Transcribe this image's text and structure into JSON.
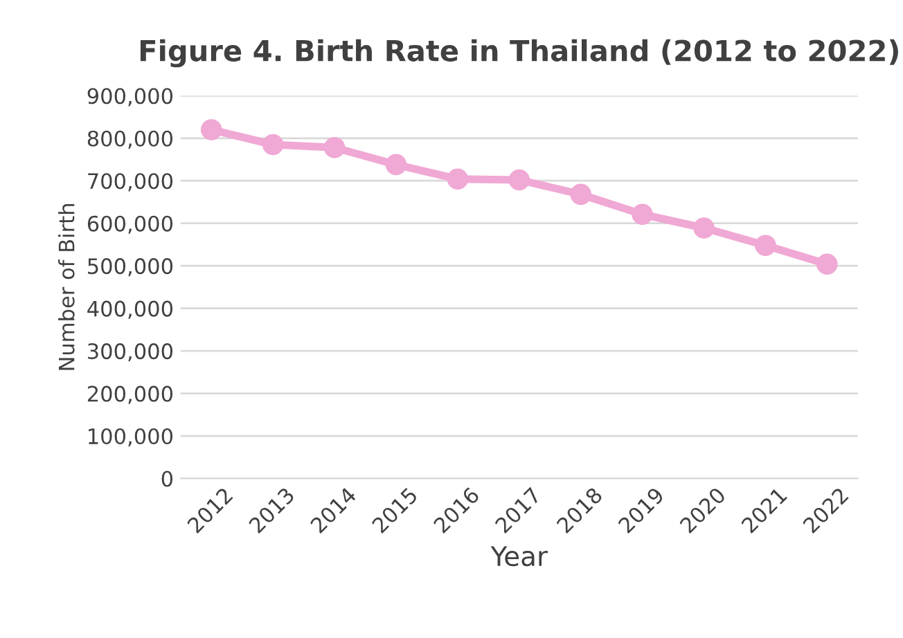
{
  "chart_data": {
    "type": "line",
    "title": "Figure 4. Birth Rate in Thailand (2012 to 2022)",
    "xlabel": "Year",
    "ylabel": "Number of Birth",
    "categories": [
      "2012",
      "2013",
      "2014",
      "2015",
      "2016",
      "2017",
      "2018",
      "2019",
      "2020",
      "2021",
      "2022"
    ],
    "series": [
      {
        "color": "#f0a8d4",
        "values": [
          820000,
          785000,
          778000,
          738000,
          704000,
          702000,
          668000,
          621000,
          589000,
          548000,
          504000
        ]
      }
    ],
    "ylim": [
      0,
      900000
    ],
    "yticks": [
      {
        "value": 0,
        "label": "0"
      },
      {
        "value": 100000,
        "label": "100,000"
      },
      {
        "value": 200000,
        "label": "200,000"
      },
      {
        "value": 300000,
        "label": "300,000"
      },
      {
        "value": 400000,
        "label": "400,000"
      },
      {
        "value": 500000,
        "label": "500,000"
      },
      {
        "value": 600000,
        "label": "600,000"
      },
      {
        "value": 700000,
        "label": "700,000"
      },
      {
        "value": 800000,
        "label": "800,000"
      },
      {
        "value": 900000,
        "label": "900,000"
      }
    ],
    "grid": "y",
    "marker": "circle",
    "line_style": "solid"
  }
}
